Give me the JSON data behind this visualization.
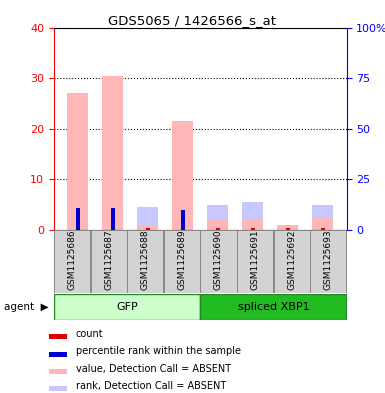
{
  "title": "GDS5065 / 1426566_s_at",
  "samples": [
    "GSM1125686",
    "GSM1125687",
    "GSM1125688",
    "GSM1125689",
    "GSM1125690",
    "GSM1125691",
    "GSM1125692",
    "GSM1125693"
  ],
  "groups": [
    {
      "name": "GFP",
      "indices": [
        0,
        1,
        2,
        3
      ],
      "light_color": "#ccffcc",
      "dark_color": "#44dd44"
    },
    {
      "name": "spliced XBP1",
      "indices": [
        4,
        5,
        6,
        7
      ],
      "light_color": "#44ee44",
      "dark_color": "#22bb22"
    }
  ],
  "value_absent": [
    27.0,
    30.5,
    1.0,
    21.5,
    2.0,
    2.0,
    1.0,
    2.5
  ],
  "rank_absent": [
    0.0,
    0.0,
    3.5,
    0.0,
    3.0,
    3.5,
    0.0,
    2.5
  ],
  "count": [
    0.4,
    0.4,
    0.4,
    0.4,
    0.4,
    0.4,
    0.4,
    0.4
  ],
  "percentile": [
    11.0,
    11.0,
    0.0,
    10.0,
    0.0,
    0.0,
    0.0,
    0.0
  ],
  "ylim_left": [
    0,
    40
  ],
  "ylim_right": [
    0,
    100
  ],
  "yticks_left": [
    0,
    10,
    20,
    30,
    40
  ],
  "yticks_right": [
    0,
    25,
    50,
    75,
    100
  ],
  "ytick_labels_right": [
    "0",
    "25",
    "50",
    "75",
    "100%"
  ],
  "bar_color_absent_value": "#ffb6b6",
  "bar_color_absent_rank": "#c8c8ff",
  "bar_color_count": "#dd0000",
  "bar_color_percentile": "#0000cc",
  "legend_items": [
    {
      "color": "#dd0000",
      "label": "count"
    },
    {
      "color": "#0000cc",
      "label": "percentile rank within the sample"
    },
    {
      "color": "#ffb6b6",
      "label": "value, Detection Call = ABSENT"
    },
    {
      "color": "#c8c8ff",
      "label": "rank, Detection Call = ABSENT"
    }
  ],
  "background_color": "#ffffff"
}
